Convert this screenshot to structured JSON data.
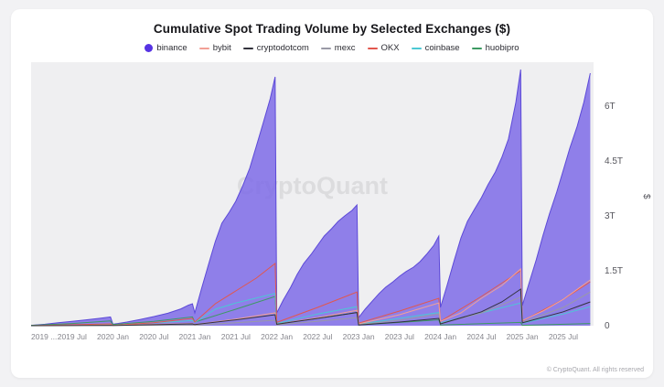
{
  "page": {
    "background": "#f2f2f4",
    "card_background": "#ffffff"
  },
  "header": {
    "title": "Cumulative Spot Trading Volume by Selected Exchanges ($)"
  },
  "legend": [
    {
      "label": "binance",
      "color": "#5633e3",
      "marker": "dot"
    },
    {
      "label": "bybit",
      "color": "#f2a096",
      "marker": "line"
    },
    {
      "label": "cryptodotcom",
      "color": "#32323c",
      "marker": "line"
    },
    {
      "label": "mexc",
      "color": "#9a9aa6",
      "marker": "line"
    },
    {
      "label": "OKX",
      "color": "#e2574e",
      "marker": "line"
    },
    {
      "label": "coinbase",
      "color": "#4cc8d4",
      "marker": "line"
    },
    {
      "label": "huobipro",
      "color": "#3c9a62",
      "marker": "line"
    }
  ],
  "footer": {
    "copyright": "© CryptoQuant. All rights reserved"
  },
  "chart_data": {
    "type": "area",
    "title": "Cumulative Spot Trading Volume by Selected Exchanges ($)",
    "watermark": "CryptoQuant",
    "xlabel": "",
    "ylabel": "$",
    "x_range": [
      2019.0,
      2025.87
    ],
    "ylim": [
      0,
      7.2
    ],
    "unit": "trillion USD",
    "grid": false,
    "legend_position": "top",
    "plot_bg": "#efeff1",
    "y_ticks": [
      {
        "value": 0,
        "label": "0"
      },
      {
        "value": 1.5,
        "label": "1.5T"
      },
      {
        "value": 3,
        "label": "3T"
      },
      {
        "value": 4.5,
        "label": "4.5T"
      },
      {
        "value": 6,
        "label": "6T"
      }
    ],
    "x_ticks": [
      {
        "value": 2019.0,
        "label": "2019 ...",
        "anchor": "start"
      },
      {
        "value": 2019.5,
        "label": "2019 Jul"
      },
      {
        "value": 2020.0,
        "label": "2020 Jan"
      },
      {
        "value": 2020.5,
        "label": "2020 Jul"
      },
      {
        "value": 2021.0,
        "label": "2021 Jan"
      },
      {
        "value": 2021.5,
        "label": "2021 Jul"
      },
      {
        "value": 2022.0,
        "label": "2022 Jan"
      },
      {
        "value": 2022.5,
        "label": "2022 Jul"
      },
      {
        "value": 2023.0,
        "label": "2023 Jan"
      },
      {
        "value": 2023.5,
        "label": "2023 Jul"
      },
      {
        "value": 2024.0,
        "label": "2024 Jan"
      },
      {
        "value": 2024.5,
        "label": "2024 Jul"
      },
      {
        "value": 2025.0,
        "label": "2025 Jan"
      },
      {
        "value": 2025.5,
        "label": "2025 Jul"
      }
    ],
    "series": [
      {
        "name": "binance",
        "type": "area",
        "color": "#7e6be8",
        "stroke": "#5c49d8",
        "fill_opacity": 0.85,
        "points": [
          [
            2019.0,
            0.01
          ],
          [
            2019.17,
            0.04
          ],
          [
            2019.33,
            0.08
          ],
          [
            2019.5,
            0.12
          ],
          [
            2019.67,
            0.16
          ],
          [
            2019.83,
            0.2
          ],
          [
            2019.97,
            0.24
          ],
          [
            2020.0,
            0.04
          ],
          [
            2020.17,
            0.1
          ],
          [
            2020.33,
            0.17
          ],
          [
            2020.5,
            0.25
          ],
          [
            2020.67,
            0.34
          ],
          [
            2020.83,
            0.46
          ],
          [
            2020.92,
            0.56
          ],
          [
            2020.97,
            0.6
          ],
          [
            2021.0,
            0.35
          ],
          [
            2021.08,
            1.0
          ],
          [
            2021.17,
            1.7
          ],
          [
            2021.25,
            2.3
          ],
          [
            2021.33,
            2.8
          ],
          [
            2021.42,
            3.1
          ],
          [
            2021.5,
            3.4
          ],
          [
            2021.58,
            3.8
          ],
          [
            2021.67,
            4.3
          ],
          [
            2021.75,
            4.9
          ],
          [
            2021.83,
            5.5
          ],
          [
            2021.92,
            6.2
          ],
          [
            2021.98,
            6.8
          ],
          [
            2022.0,
            0.35
          ],
          [
            2022.08,
            0.7
          ],
          [
            2022.17,
            1.05
          ],
          [
            2022.25,
            1.4
          ],
          [
            2022.33,
            1.7
          ],
          [
            2022.42,
            1.95
          ],
          [
            2022.5,
            2.2
          ],
          [
            2022.58,
            2.45
          ],
          [
            2022.67,
            2.65
          ],
          [
            2022.75,
            2.85
          ],
          [
            2022.83,
            3.0
          ],
          [
            2022.92,
            3.15
          ],
          [
            2022.98,
            3.3
          ],
          [
            2023.0,
            0.22
          ],
          [
            2023.08,
            0.45
          ],
          [
            2023.17,
            0.68
          ],
          [
            2023.25,
            0.88
          ],
          [
            2023.33,
            1.05
          ],
          [
            2023.42,
            1.2
          ],
          [
            2023.5,
            1.35
          ],
          [
            2023.58,
            1.48
          ],
          [
            2023.67,
            1.6
          ],
          [
            2023.75,
            1.75
          ],
          [
            2023.83,
            1.95
          ],
          [
            2023.92,
            2.2
          ],
          [
            2023.98,
            2.45
          ],
          [
            2024.0,
            0.5
          ],
          [
            2024.08,
            1.1
          ],
          [
            2024.17,
            1.8
          ],
          [
            2024.25,
            2.4
          ],
          [
            2024.33,
            2.85
          ],
          [
            2024.42,
            3.2
          ],
          [
            2024.5,
            3.5
          ],
          [
            2024.58,
            3.85
          ],
          [
            2024.67,
            4.2
          ],
          [
            2024.75,
            4.6
          ],
          [
            2024.83,
            5.1
          ],
          [
            2024.92,
            6.1
          ],
          [
            2024.98,
            7.0
          ],
          [
            2025.0,
            0.55
          ],
          [
            2025.08,
            1.15
          ],
          [
            2025.17,
            1.8
          ],
          [
            2025.25,
            2.45
          ],
          [
            2025.33,
            3.05
          ],
          [
            2025.42,
            3.65
          ],
          [
            2025.5,
            4.25
          ],
          [
            2025.58,
            4.85
          ],
          [
            2025.67,
            5.45
          ],
          [
            2025.75,
            6.1
          ],
          [
            2025.83,
            6.9
          ]
        ]
      },
      {
        "name": "huobipro",
        "type": "line",
        "color": "#3c9a62",
        "points": [
          [
            2019.0,
            0.01
          ],
          [
            2019.5,
            0.06
          ],
          [
            2019.97,
            0.13
          ],
          [
            2020.0,
            0.03
          ],
          [
            2020.5,
            0.12
          ],
          [
            2020.97,
            0.24
          ],
          [
            2021.0,
            0.1
          ],
          [
            2021.5,
            0.45
          ],
          [
            2021.98,
            0.8
          ],
          [
            2022.0,
            0.05
          ],
          [
            2022.5,
            0.2
          ],
          [
            2022.98,
            0.36
          ],
          [
            2023.0,
            0.02
          ],
          [
            2023.5,
            0.09
          ],
          [
            2023.98,
            0.16
          ],
          [
            2024.0,
            0.02
          ],
          [
            2024.98,
            0.09
          ],
          [
            2025.0,
            0.01
          ],
          [
            2025.83,
            0.06
          ]
        ]
      },
      {
        "name": "coinbase",
        "type": "line",
        "color": "#4cc8d4",
        "points": [
          [
            2019.0,
            0.0
          ],
          [
            2019.97,
            0.04
          ],
          [
            2020.0,
            0.01
          ],
          [
            2020.97,
            0.14
          ],
          [
            2021.0,
            0.09
          ],
          [
            2021.25,
            0.45
          ],
          [
            2021.5,
            0.62
          ],
          [
            2021.98,
            0.88
          ],
          [
            2022.0,
            0.06
          ],
          [
            2022.5,
            0.32
          ],
          [
            2022.98,
            0.52
          ],
          [
            2023.0,
            0.04
          ],
          [
            2023.5,
            0.2
          ],
          [
            2023.98,
            0.36
          ],
          [
            2024.0,
            0.08
          ],
          [
            2024.5,
            0.35
          ],
          [
            2024.98,
            0.62
          ],
          [
            2025.0,
            0.07
          ],
          [
            2025.5,
            0.32
          ],
          [
            2025.83,
            0.52
          ]
        ]
      },
      {
        "name": "mexc",
        "type": "line",
        "color": "#9a9aa6",
        "points": [
          [
            2019.0,
            0.0
          ],
          [
            2020.97,
            0.02
          ],
          [
            2021.0,
            0.01
          ],
          [
            2021.98,
            0.15
          ],
          [
            2022.0,
            0.02
          ],
          [
            2022.98,
            0.22
          ],
          [
            2023.0,
            0.03
          ],
          [
            2023.5,
            0.15
          ],
          [
            2023.98,
            0.32
          ],
          [
            2024.0,
            0.06
          ],
          [
            2024.5,
            0.35
          ],
          [
            2024.98,
            0.78
          ],
          [
            2025.0,
            0.09
          ],
          [
            2025.5,
            0.5
          ],
          [
            2025.83,
            0.92
          ]
        ]
      },
      {
        "name": "OKX",
        "type": "line",
        "color": "#e2574e",
        "points": [
          [
            2019.0,
            0.0
          ],
          [
            2019.97,
            0.05
          ],
          [
            2020.0,
            0.01
          ],
          [
            2020.5,
            0.08
          ],
          [
            2020.97,
            0.2
          ],
          [
            2021.0,
            0.1
          ],
          [
            2021.25,
            0.6
          ],
          [
            2021.5,
            0.95
          ],
          [
            2021.75,
            1.3
          ],
          [
            2021.98,
            1.7
          ],
          [
            2022.0,
            0.09
          ],
          [
            2022.5,
            0.5
          ],
          [
            2022.98,
            0.92
          ],
          [
            2023.0,
            0.07
          ],
          [
            2023.5,
            0.4
          ],
          [
            2023.98,
            0.75
          ],
          [
            2024.0,
            0.12
          ],
          [
            2024.5,
            0.8
          ],
          [
            2024.98,
            1.5
          ],
          [
            2025.0,
            0.13
          ],
          [
            2025.5,
            0.72
          ],
          [
            2025.83,
            1.2
          ]
        ]
      },
      {
        "name": "bybit",
        "type": "line",
        "color": "#f2a096",
        "points": [
          [
            2019.0,
            0.0
          ],
          [
            2019.97,
            0.02
          ],
          [
            2020.0,
            0.01
          ],
          [
            2020.97,
            0.06
          ],
          [
            2021.0,
            0.03
          ],
          [
            2021.5,
            0.18
          ],
          [
            2021.98,
            0.35
          ],
          [
            2022.0,
            0.04
          ],
          [
            2022.5,
            0.22
          ],
          [
            2022.98,
            0.42
          ],
          [
            2023.0,
            0.05
          ],
          [
            2023.5,
            0.3
          ],
          [
            2023.98,
            0.62
          ],
          [
            2024.0,
            0.12
          ],
          [
            2024.25,
            0.35
          ],
          [
            2024.5,
            0.75
          ],
          [
            2024.75,
            1.1
          ],
          [
            2024.98,
            1.55
          ],
          [
            2025.0,
            0.14
          ],
          [
            2025.25,
            0.4
          ],
          [
            2025.5,
            0.72
          ],
          [
            2025.83,
            1.25
          ]
        ]
      },
      {
        "name": "cryptodotcom",
        "type": "line",
        "color": "#32323c",
        "points": [
          [
            2019.0,
            0.0
          ],
          [
            2019.97,
            0.01
          ],
          [
            2020.0,
            0.005
          ],
          [
            2020.97,
            0.05
          ],
          [
            2021.0,
            0.03
          ],
          [
            2021.5,
            0.16
          ],
          [
            2021.98,
            0.3
          ],
          [
            2022.0,
            0.04
          ],
          [
            2022.5,
            0.2
          ],
          [
            2022.98,
            0.36
          ],
          [
            2023.0,
            0.02
          ],
          [
            2023.5,
            0.1
          ],
          [
            2023.98,
            0.2
          ],
          [
            2024.0,
            0.05
          ],
          [
            2024.5,
            0.38
          ],
          [
            2024.75,
            0.65
          ],
          [
            2024.98,
            1.0
          ],
          [
            2025.0,
            0.08
          ],
          [
            2025.5,
            0.38
          ],
          [
            2025.83,
            0.65
          ]
        ]
      }
    ]
  }
}
